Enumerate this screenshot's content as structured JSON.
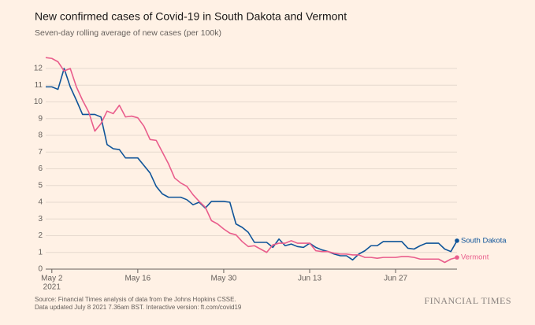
{
  "chart_data": {
    "type": "line",
    "title": "New confirmed cases of Covid-19 in South Dakota and Vermont",
    "subtitle": "Seven-day rolling average of new cases (per 100k)",
    "x": [
      "2021-05-01",
      "2021-05-02",
      "2021-05-03",
      "2021-05-04",
      "2021-05-05",
      "2021-05-06",
      "2021-05-07",
      "2021-05-08",
      "2021-05-09",
      "2021-05-10",
      "2021-05-11",
      "2021-05-12",
      "2021-05-13",
      "2021-05-14",
      "2021-05-15",
      "2021-05-16",
      "2021-05-17",
      "2021-05-18",
      "2021-05-19",
      "2021-05-20",
      "2021-05-21",
      "2021-05-22",
      "2021-05-23",
      "2021-05-24",
      "2021-05-25",
      "2021-05-26",
      "2021-05-27",
      "2021-05-28",
      "2021-05-29",
      "2021-05-30",
      "2021-05-31",
      "2021-06-01",
      "2021-06-02",
      "2021-06-03",
      "2021-06-04",
      "2021-06-05",
      "2021-06-06",
      "2021-06-07",
      "2021-06-08",
      "2021-06-09",
      "2021-06-10",
      "2021-06-11",
      "2021-06-12",
      "2021-06-13",
      "2021-06-14",
      "2021-06-15",
      "2021-06-16",
      "2021-06-17",
      "2021-06-18",
      "2021-06-19",
      "2021-06-20",
      "2021-06-21",
      "2021-06-22",
      "2021-06-23",
      "2021-06-24",
      "2021-06-25",
      "2021-06-26",
      "2021-06-27",
      "2021-06-28",
      "2021-06-29",
      "2021-06-30",
      "2021-07-01",
      "2021-07-02",
      "2021-07-03",
      "2021-07-04",
      "2021-07-05",
      "2021-07-06",
      "2021-07-07"
    ],
    "series": [
      {
        "name": "South Dakota",
        "color": "#0f5499",
        "values": [
          10.9,
          10.9,
          10.75,
          12.0,
          10.9,
          10.1,
          9.25,
          9.25,
          9.25,
          9.1,
          7.45,
          7.2,
          7.15,
          6.65,
          6.65,
          6.65,
          6.2,
          5.75,
          4.95,
          4.5,
          4.3,
          4.3,
          4.3,
          4.15,
          3.85,
          4.0,
          3.65,
          4.05,
          4.05,
          4.05,
          4.0,
          2.7,
          2.5,
          2.2,
          1.6,
          1.6,
          1.6,
          1.3,
          1.8,
          1.4,
          1.5,
          1.35,
          1.3,
          1.55,
          1.3,
          1.15,
          1.05,
          0.9,
          0.8,
          0.8,
          0.55,
          0.9,
          1.1,
          1.4,
          1.4,
          1.65,
          1.65,
          1.65,
          1.65,
          1.25,
          1.2,
          1.4,
          1.55,
          1.55,
          1.55,
          1.2,
          1.05,
          1.7
        ]
      },
      {
        "name": "Vermont",
        "color": "#e95d8c",
        "values": [
          12.65,
          12.6,
          12.4,
          11.85,
          12.0,
          10.9,
          10.1,
          9.4,
          8.25,
          8.7,
          9.45,
          9.3,
          9.8,
          9.1,
          9.15,
          9.05,
          8.55,
          7.75,
          7.7,
          7.0,
          6.3,
          5.45,
          5.15,
          4.95,
          4.45,
          4.05,
          3.7,
          2.9,
          2.7,
          2.4,
          2.15,
          2.05,
          1.65,
          1.35,
          1.4,
          1.2,
          1.0,
          1.45,
          1.55,
          1.55,
          1.7,
          1.55,
          1.55,
          1.55,
          1.1,
          1.05,
          1.05,
          0.95,
          0.9,
          0.9,
          0.85,
          0.85,
          0.7,
          0.7,
          0.65,
          0.7,
          0.7,
          0.7,
          0.75,
          0.75,
          0.7,
          0.6,
          0.6,
          0.6,
          0.6,
          0.4,
          0.6,
          0.7
        ]
      }
    ],
    "xlim": [
      "2021-05-01",
      "2021-07-07"
    ],
    "xticks": [
      {
        "value": "2021-05-02",
        "label": "May 2"
      },
      {
        "value": "2021-05-16",
        "label": "May 16"
      },
      {
        "value": "2021-05-30",
        "label": "May 30"
      },
      {
        "value": "2021-06-13",
        "label": "Jun 13"
      },
      {
        "value": "2021-06-27",
        "label": "Jun 27"
      }
    ],
    "x_year_label": "2021",
    "ylim": [
      0,
      12.8
    ],
    "yticks": [
      0,
      1,
      2,
      3,
      4,
      5,
      6,
      7,
      8,
      9,
      10,
      11,
      12
    ],
    "grid": true,
    "source": "Source: Financial Times analysis of data from the Johns Hopkins CSSE.",
    "updated": "Data updated July 8 2021 7.36am BST. Interactive version: ft.com/covid19",
    "brand": "FINANCIAL TIMES"
  }
}
